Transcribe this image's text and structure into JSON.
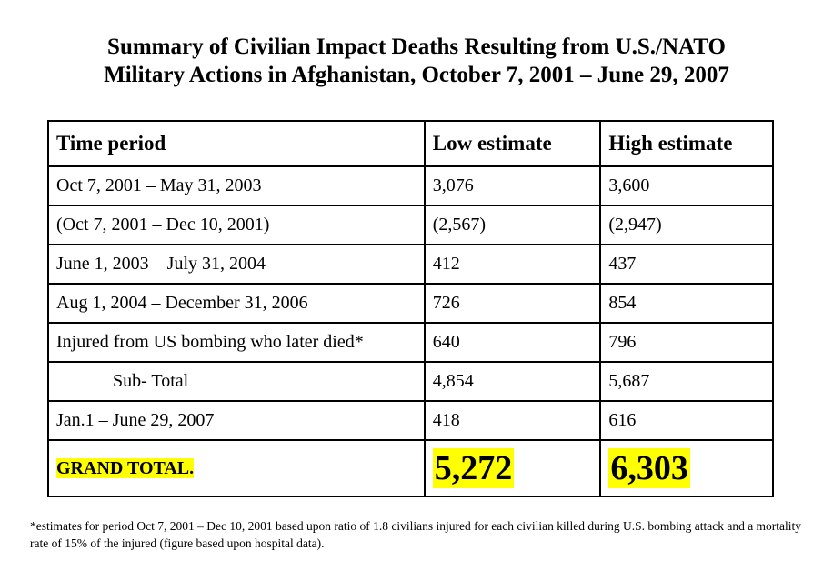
{
  "title": {
    "line1": "Summary of Civilian Impact Deaths Resulting from U.S./NATO",
    "line2": "Military Actions in Afghanistan, October 7, 2001 – June 29, 2007"
  },
  "table": {
    "headers": [
      "Time period",
      "Low estimate",
      "High estimate"
    ],
    "rows": [
      [
        "Oct 7, 2001 – May 31, 2003",
        "3,076",
        "3,600"
      ],
      [
        "(Oct 7, 2001 – Dec 10, 2001)",
        "(2,567)",
        "(2,947)"
      ],
      [
        "June 1, 2003 – July 31, 2004",
        "412",
        "437"
      ],
      [
        "Aug 1, 2004 – December 31, 2006",
        "726",
        "854"
      ],
      [
        "Injured from US bombing who later died*",
        "640",
        "796"
      ],
      [
        "Sub- Total",
        "4,854",
        "5,687"
      ],
      [
        "Jan.1 – June 29, 2007",
        "418",
        "616"
      ]
    ],
    "grand_total": [
      "GRAND TOTAL.",
      "5,272",
      "6,303"
    ],
    "highlight_color": "#ffff00"
  },
  "footnote": "*estimates for period Oct 7, 2001 – Dec 10, 2001 based upon ratio of 1.8 civilians injured for each civilian killed during U.S. bombing attack and a mortality rate of 15% of the injured (figure based upon hospital data)."
}
